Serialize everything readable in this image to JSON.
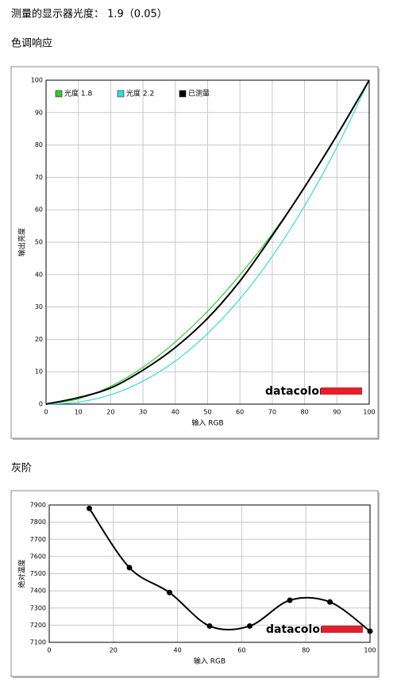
{
  "header": {
    "text": "测量的显示器光度： 1.9（0.05）"
  },
  "chart_data": [
    {
      "type": "line",
      "title": "色调响应",
      "xlabel": "输入 RGB",
      "ylabel": "输出亮度",
      "annotation": "datacolor",
      "x": [
        0,
        10,
        20,
        30,
        40,
        50,
        60,
        70,
        80,
        90,
        100
      ],
      "series": [
        {
          "name": "光度 1.8",
          "color": "#33cc33",
          "values": [
            0,
            1.6,
            5.5,
            11.4,
            19.2,
            28.7,
            39.9,
            52.6,
            66.9,
            82.8,
            100
          ]
        },
        {
          "name": "光度 2.2",
          "color": "#33dddd",
          "values": [
            0,
            0.6,
            2.9,
            7.1,
            13.3,
            21.8,
            32.5,
            45.6,
            61.2,
            79.3,
            100
          ]
        },
        {
          "name": "已测量",
          "color": "#000000",
          "values": [
            0,
            2,
            5,
            10.5,
            17.5,
            26.5,
            38,
            52,
            67,
            83,
            100
          ]
        }
      ],
      "xlim": [
        0,
        100
      ],
      "xticks": [
        0,
        10,
        20,
        30,
        40,
        50,
        60,
        70,
        80,
        90,
        100
      ],
      "ylim": [
        0,
        100
      ],
      "yticks": [
        0,
        10,
        20,
        30,
        40,
        50,
        60,
        70,
        80,
        90,
        100
      ],
      "grid": true,
      "legend": "upper left",
      "markers": false,
      "smooth": true
    },
    {
      "type": "line",
      "title": "灰阶",
      "xlabel": "输入 RGB",
      "ylabel": "绝对温度",
      "annotation": "datacolor",
      "x": [
        12.5,
        25,
        37.5,
        50,
        62.5,
        75,
        87.5,
        100
      ],
      "series": [
        {
          "color": "#000000",
          "values": [
            7880,
            7535,
            7390,
            7195,
            7195,
            7345,
            7335,
            7165
          ]
        }
      ],
      "xlim": [
        0,
        100
      ],
      "xticks": [
        0,
        20,
        40,
        60,
        80,
        100
      ],
      "ylim": [
        7100,
        7900
      ],
      "yticks": [
        7100,
        7200,
        7300,
        7400,
        7500,
        7600,
        7700,
        7800,
        7900
      ],
      "grid": true,
      "markers": true,
      "smooth": true
    }
  ]
}
